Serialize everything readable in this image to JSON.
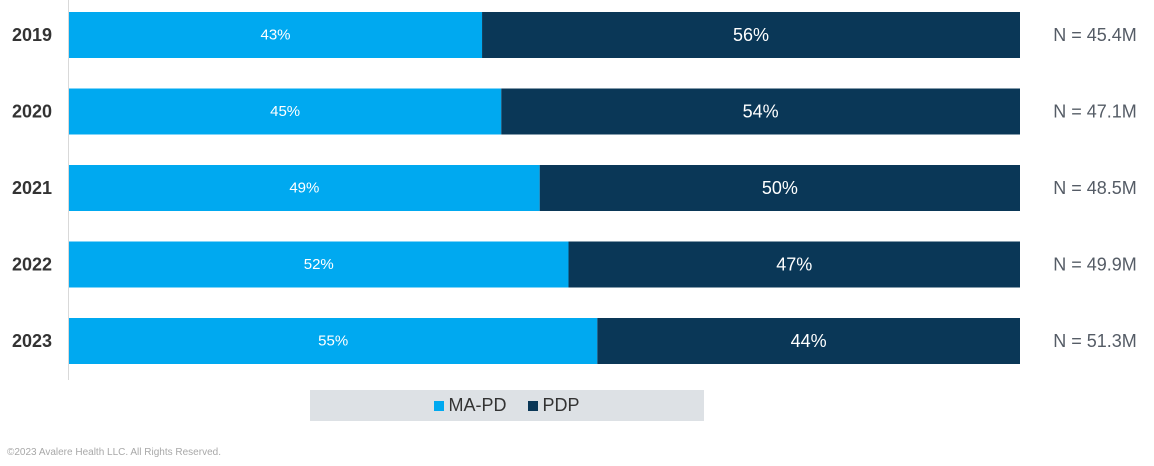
{
  "chart_data": {
    "type": "bar",
    "orientation": "horizontal",
    "stacked": true,
    "categories": [
      "2019",
      "2020",
      "2021",
      "2022",
      "2023"
    ],
    "series": [
      {
        "name": "MA-PD",
        "values": [
          43,
          45,
          49,
          52,
          55
        ],
        "labels": [
          "43%",
          "45%",
          "49%",
          "52%",
          "55%"
        ],
        "color": "#00a9f0"
      },
      {
        "name": "PDP",
        "values": [
          56,
          54,
          50,
          47,
          44
        ],
        "labels": [
          "56%",
          "54%",
          "50%",
          "47%",
          "44%"
        ],
        "color": "#0a3757"
      }
    ],
    "totals": [
      "N = 45.4M",
      "N = 47.1M",
      "N = 48.5M",
      "N = 49.9M",
      "N = 51.3M"
    ],
    "xlim": [
      0,
      100
    ],
    "grid": false,
    "legend_position": "bottom"
  },
  "legend": {
    "mapd_label": "MA-PD",
    "pdp_label": "PDP"
  },
  "footer": {
    "copyright": "©2023 Avalere Health LLC. All Rights Reserved."
  }
}
